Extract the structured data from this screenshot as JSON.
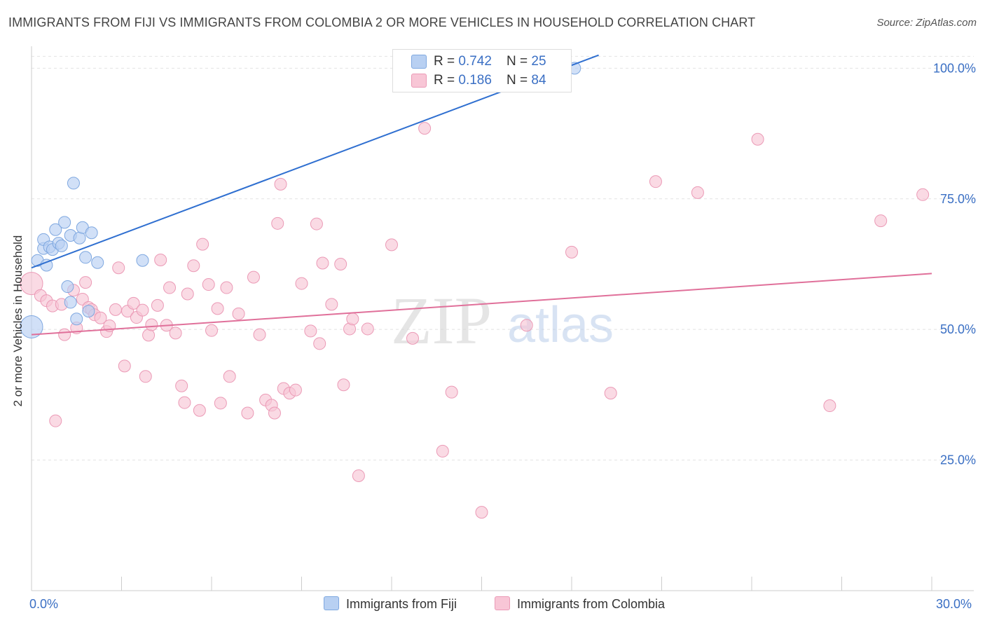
{
  "title": "IMMIGRANTS FROM FIJI VS IMMIGRANTS FROM COLOMBIA 2 OR MORE VEHICLES IN HOUSEHOLD CORRELATION CHART",
  "source": "Source: ZipAtlas.com",
  "watermark": {
    "zip": "ZIP",
    "atlas": "atlas"
  },
  "stats": {
    "fiji": {
      "r_label": "R = ",
      "r": "0.742",
      "n_label": "N = ",
      "n": "25"
    },
    "colombia": {
      "r_label": "R = ",
      "r": "0.186",
      "n_label": "N = ",
      "n": "84"
    }
  },
  "legend": {
    "fiji": "Immigrants from Fiji",
    "colombia": "Immigrants from Colombia"
  },
  "colors": {
    "fiji_fill": "#b8d0f2",
    "fiji_stroke": "#7fa8e0",
    "fiji_line": "#2f6fd0",
    "colombia_fill": "#f8c6d6",
    "colombia_stroke": "#eb9ab6",
    "colombia_line": "#e0709a",
    "tick_text": "#3a6fc4",
    "grid": "#e2e2e2"
  },
  "chart_data": {
    "type": "scatter",
    "title": "IMMIGRANTS FROM FIJI VS IMMIGRANTS FROM COLOMBIA 2 OR MORE VEHICLES IN HOUSEHOLD CORRELATION CHART",
    "xlabel": "",
    "ylabel": "2 or more Vehicles in Household",
    "xlim": [
      0,
      30
    ],
    "ylim": [
      0,
      103
    ],
    "x_tick_labels": [
      "0.0%",
      "30.0%"
    ],
    "y_ticks": [
      25,
      50,
      75,
      100
    ],
    "y_tick_labels": [
      "25.0%",
      "50.0%",
      "75.0%",
      "100.0%"
    ],
    "grid": true,
    "series": [
      {
        "name": "Immigrants from Fiji",
        "r": 0.742,
        "n": 25,
        "trend": {
          "x": [
            0,
            18.9
          ],
          "y": [
            61.8,
            102.5
          ]
        },
        "points": [
          {
            "x": 0.0,
            "y": 50.5,
            "big": true
          },
          {
            "x": 0.2,
            "y": 63.2
          },
          {
            "x": 0.4,
            "y": 65.5
          },
          {
            "x": 0.4,
            "y": 67.2
          },
          {
            "x": 0.5,
            "y": 62.3
          },
          {
            "x": 0.6,
            "y": 65.8
          },
          {
            "x": 0.7,
            "y": 65.3
          },
          {
            "x": 0.8,
            "y": 69.1
          },
          {
            "x": 0.9,
            "y": 66.5
          },
          {
            "x": 1.0,
            "y": 66.0
          },
          {
            "x": 1.1,
            "y": 70.5
          },
          {
            "x": 1.2,
            "y": 58.2
          },
          {
            "x": 1.3,
            "y": 55.2
          },
          {
            "x": 1.3,
            "y": 68.0
          },
          {
            "x": 1.4,
            "y": 78.0
          },
          {
            "x": 1.5,
            "y": 52.0
          },
          {
            "x": 1.6,
            "y": 67.5
          },
          {
            "x": 1.7,
            "y": 69.5
          },
          {
            "x": 1.8,
            "y": 63.8
          },
          {
            "x": 1.9,
            "y": 53.5
          },
          {
            "x": 2.0,
            "y": 68.5
          },
          {
            "x": 2.2,
            "y": 62.8
          },
          {
            "x": 3.7,
            "y": 63.2
          },
          {
            "x": 18.1,
            "y": 100.0
          }
        ]
      },
      {
        "name": "Immigrants from Colombia",
        "r": 0.186,
        "n": 84,
        "trend": {
          "x": [
            0,
            30
          ],
          "y": [
            49.0,
            60.7
          ]
        },
        "points": [
          {
            "x": 0.0,
            "y": 58.8,
            "big": true
          },
          {
            "x": 0.3,
            "y": 56.5
          },
          {
            "x": 0.5,
            "y": 55.5
          },
          {
            "x": 0.7,
            "y": 54.5
          },
          {
            "x": 0.8,
            "y": 32.5
          },
          {
            "x": 1.0,
            "y": 54.8
          },
          {
            "x": 1.1,
            "y": 49.0
          },
          {
            "x": 1.4,
            "y": 57.5
          },
          {
            "x": 1.5,
            "y": 50.3
          },
          {
            "x": 1.7,
            "y": 55.8
          },
          {
            "x": 1.8,
            "y": 59.0
          },
          {
            "x": 1.9,
            "y": 54.2
          },
          {
            "x": 2.0,
            "y": 53.8
          },
          {
            "x": 2.1,
            "y": 52.8
          },
          {
            "x": 2.3,
            "y": 52.2
          },
          {
            "x": 2.5,
            "y": 49.6
          },
          {
            "x": 2.6,
            "y": 50.7
          },
          {
            "x": 2.8,
            "y": 53.8
          },
          {
            "x": 2.9,
            "y": 61.8
          },
          {
            "x": 3.1,
            "y": 43.0
          },
          {
            "x": 3.2,
            "y": 53.5
          },
          {
            "x": 3.4,
            "y": 55.0
          },
          {
            "x": 3.5,
            "y": 52.3
          },
          {
            "x": 3.7,
            "y": 53.7
          },
          {
            "x": 3.8,
            "y": 41.0
          },
          {
            "x": 3.9,
            "y": 48.9
          },
          {
            "x": 4.0,
            "y": 50.9
          },
          {
            "x": 4.2,
            "y": 54.6
          },
          {
            "x": 4.3,
            "y": 63.3
          },
          {
            "x": 4.5,
            "y": 50.8
          },
          {
            "x": 4.6,
            "y": 58.0
          },
          {
            "x": 4.8,
            "y": 49.3
          },
          {
            "x": 5.0,
            "y": 39.2
          },
          {
            "x": 5.1,
            "y": 36.0
          },
          {
            "x": 5.2,
            "y": 56.8
          },
          {
            "x": 5.4,
            "y": 62.2
          },
          {
            "x": 5.6,
            "y": 34.5
          },
          {
            "x": 5.7,
            "y": 66.3
          },
          {
            "x": 5.9,
            "y": 58.6
          },
          {
            "x": 6.0,
            "y": 49.8
          },
          {
            "x": 6.2,
            "y": 54.0
          },
          {
            "x": 6.3,
            "y": 35.9
          },
          {
            "x": 6.5,
            "y": 58.0
          },
          {
            "x": 6.6,
            "y": 41.0
          },
          {
            "x": 6.9,
            "y": 53.0
          },
          {
            "x": 7.2,
            "y": 34.0
          },
          {
            "x": 7.4,
            "y": 60.0
          },
          {
            "x": 7.6,
            "y": 49.0
          },
          {
            "x": 7.8,
            "y": 36.5
          },
          {
            "x": 8.0,
            "y": 35.5
          },
          {
            "x": 8.1,
            "y": 34.0
          },
          {
            "x": 8.2,
            "y": 70.3
          },
          {
            "x": 8.3,
            "y": 77.8
          },
          {
            "x": 8.4,
            "y": 38.7
          },
          {
            "x": 8.6,
            "y": 37.8
          },
          {
            "x": 8.8,
            "y": 38.4
          },
          {
            "x": 9.0,
            "y": 58.8
          },
          {
            "x": 9.3,
            "y": 49.7
          },
          {
            "x": 9.5,
            "y": 70.2
          },
          {
            "x": 9.6,
            "y": 47.3
          },
          {
            "x": 9.7,
            "y": 62.7
          },
          {
            "x": 10.0,
            "y": 54.8
          },
          {
            "x": 10.3,
            "y": 62.5
          },
          {
            "x": 10.4,
            "y": 39.4
          },
          {
            "x": 10.6,
            "y": 50.1
          },
          {
            "x": 10.7,
            "y": 52.0
          },
          {
            "x": 10.9,
            "y": 22.0
          },
          {
            "x": 11.2,
            "y": 50.1
          },
          {
            "x": 12.0,
            "y": 66.2
          },
          {
            "x": 12.7,
            "y": 48.3
          },
          {
            "x": 13.1,
            "y": 88.5
          },
          {
            "x": 13.7,
            "y": 26.7
          },
          {
            "x": 14.0,
            "y": 38.0
          },
          {
            "x": 15.0,
            "y": 15.0
          },
          {
            "x": 16.5,
            "y": 50.8
          },
          {
            "x": 18.0,
            "y": 64.8
          },
          {
            "x": 19.3,
            "y": 37.8
          },
          {
            "x": 20.8,
            "y": 78.3
          },
          {
            "x": 22.2,
            "y": 76.2
          },
          {
            "x": 24.2,
            "y": 86.4
          },
          {
            "x": 26.6,
            "y": 35.4
          },
          {
            "x": 28.3,
            "y": 70.8
          },
          {
            "x": 29.7,
            "y": 75.8
          }
        ]
      }
    ]
  }
}
